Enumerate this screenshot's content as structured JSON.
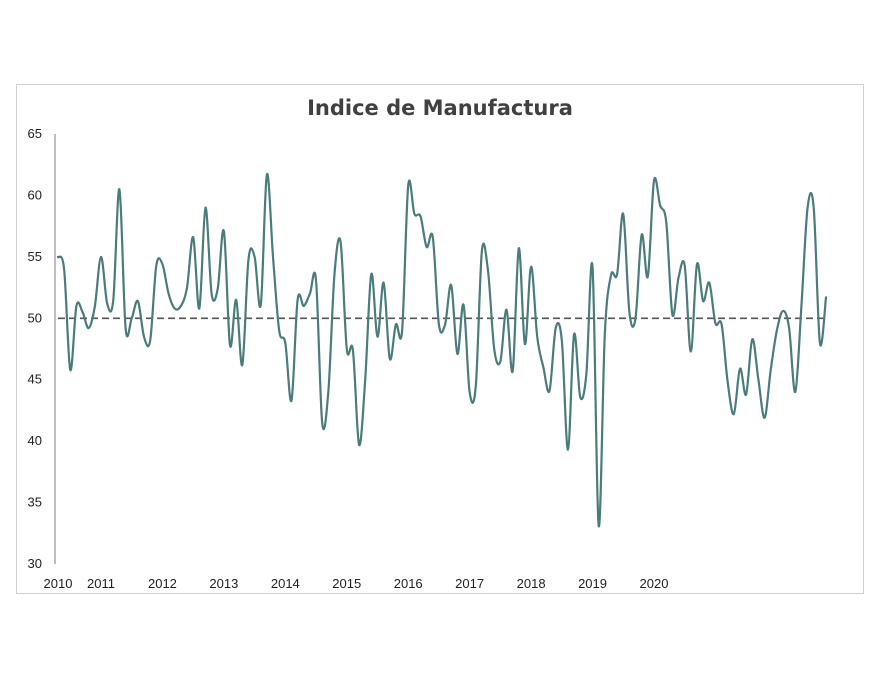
{
  "chart_data": {
    "type": "line",
    "title": "Indice de Manufactura",
    "xlabel": "",
    "ylabel": "",
    "ylim": [
      30,
      65
    ],
    "yticks": [
      30,
      35,
      40,
      45,
      50,
      55,
      60,
      65
    ],
    "xtick_labels": [
      "2010",
      "2011",
      "2012",
      "2013",
      "2014",
      "2015",
      "2016",
      "2017",
      "2018",
      "2019",
      "2020"
    ],
    "xtick_month_index": [
      0,
      7,
      17,
      27,
      37,
      47,
      57,
      67,
      77,
      87,
      97
    ],
    "reference_line": 50,
    "grid": false,
    "legend": "none",
    "series_color": "#4a7c7a",
    "reference_color": "#555555",
    "series": [
      {
        "values": [
          55.0,
          54.0,
          45.8,
          51.0,
          50.5,
          49.2,
          51.0,
          55.0,
          51.2,
          51.5,
          60.5,
          49.2,
          50.0,
          51.4,
          48.5,
          48.2,
          54.3,
          54.4,
          52.0,
          50.8,
          51.0,
          52.5,
          56.6,
          50.8,
          59.0,
          52.0,
          52.4,
          57.1,
          47.8,
          51.5,
          46.2,
          54.8,
          55.0,
          51.1,
          61.7,
          55.0,
          49.0,
          48.0,
          43.3,
          51.5,
          51.0,
          52.0,
          53.1,
          41.5,
          44.0,
          53.6,
          56.2,
          47.5,
          47.4,
          39.7,
          45.0,
          53.6,
          48.5,
          52.9,
          46.7,
          49.5,
          49.0,
          60.8,
          58.5,
          58.3,
          55.8,
          56.6,
          49.5,
          49.5,
          52.7,
          47.1,
          51.1,
          44.0,
          44.5,
          55.5,
          53.8,
          47.5,
          46.5,
          50.7,
          45.7,
          55.7,
          47.9,
          54.2,
          48.5,
          46.0,
          44.1,
          49.2,
          48.2,
          39.3,
          48.7,
          43.6,
          45.5,
          54.2,
          33.1,
          48.7,
          53.5,
          53.6,
          58.5,
          50.5,
          50.0,
          56.8,
          53.4,
          61.2,
          59.2,
          57.8,
          50.3,
          53.3,
          54.3,
          47.3,
          54.4,
          51.4,
          52.9,
          49.6,
          49.5,
          44.8,
          42.2,
          45.9,
          43.8,
          48.3,
          45.0,
          41.9,
          45.8,
          49.0,
          50.6,
          49.2,
          44.0,
          51.0,
          59.0,
          59.0,
          48.0,
          51.7
        ]
      }
    ]
  }
}
